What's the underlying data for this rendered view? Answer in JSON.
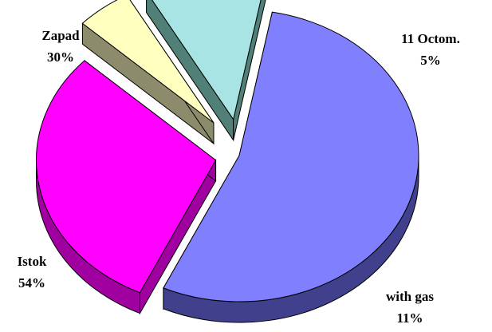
{
  "chart_data": {
    "type": "pie",
    "style": "3d-exploded",
    "categories": [
      "Zapad",
      "11 Octom.",
      "with gas",
      "Istok"
    ],
    "values": [
      30,
      5,
      11,
      54
    ],
    "labels": [
      {
        "name": "Zapad",
        "percent": "30%"
      },
      {
        "name": "11 Octom.",
        "percent": "5%"
      },
      {
        "name": "with gas",
        "percent": "11%"
      },
      {
        "name": "Istok",
        "percent": "54%"
      }
    ],
    "colors": [
      "#ff00ff",
      "#ffffc0",
      "#a8e4e4",
      "#8080ff"
    ],
    "side_colors": [
      "#a000a0",
      "#8c8c6c",
      "#508078",
      "#40408c"
    ],
    "title": "",
    "legend": "none"
  }
}
